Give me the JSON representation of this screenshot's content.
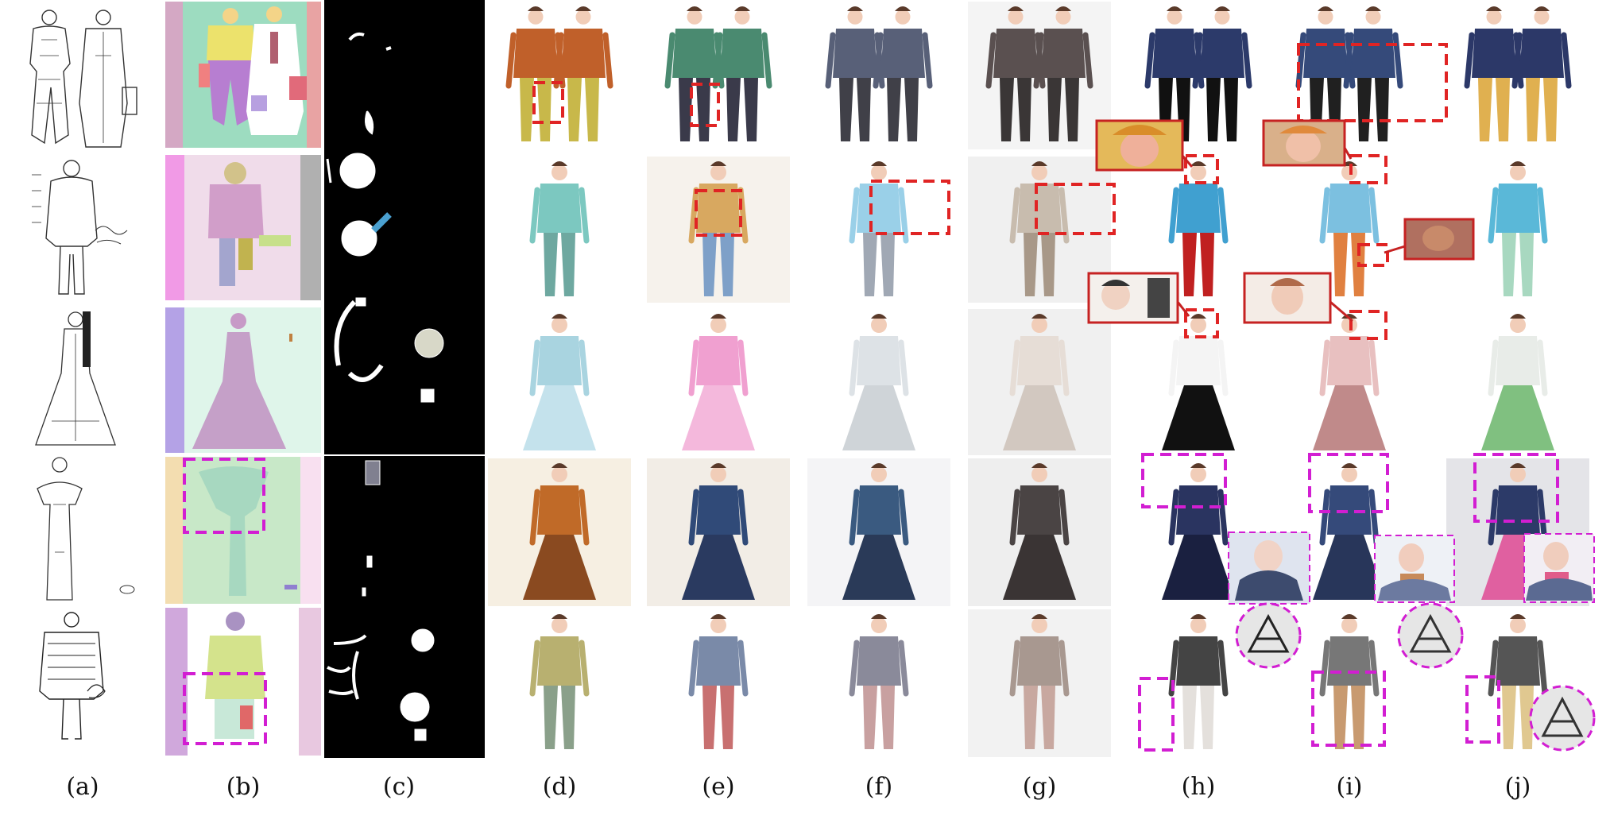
{
  "figure": {
    "column_labels": [
      "(a)",
      "(b)",
      "(c)",
      "(d)",
      "(e)",
      "(f)",
      "(g)",
      "(h)",
      "(i)",
      "(j)"
    ],
    "colors": {
      "highlight_red": "#e02424",
      "highlight_magenta": "#d21ed2",
      "mask_background": "#000000"
    }
  }
}
